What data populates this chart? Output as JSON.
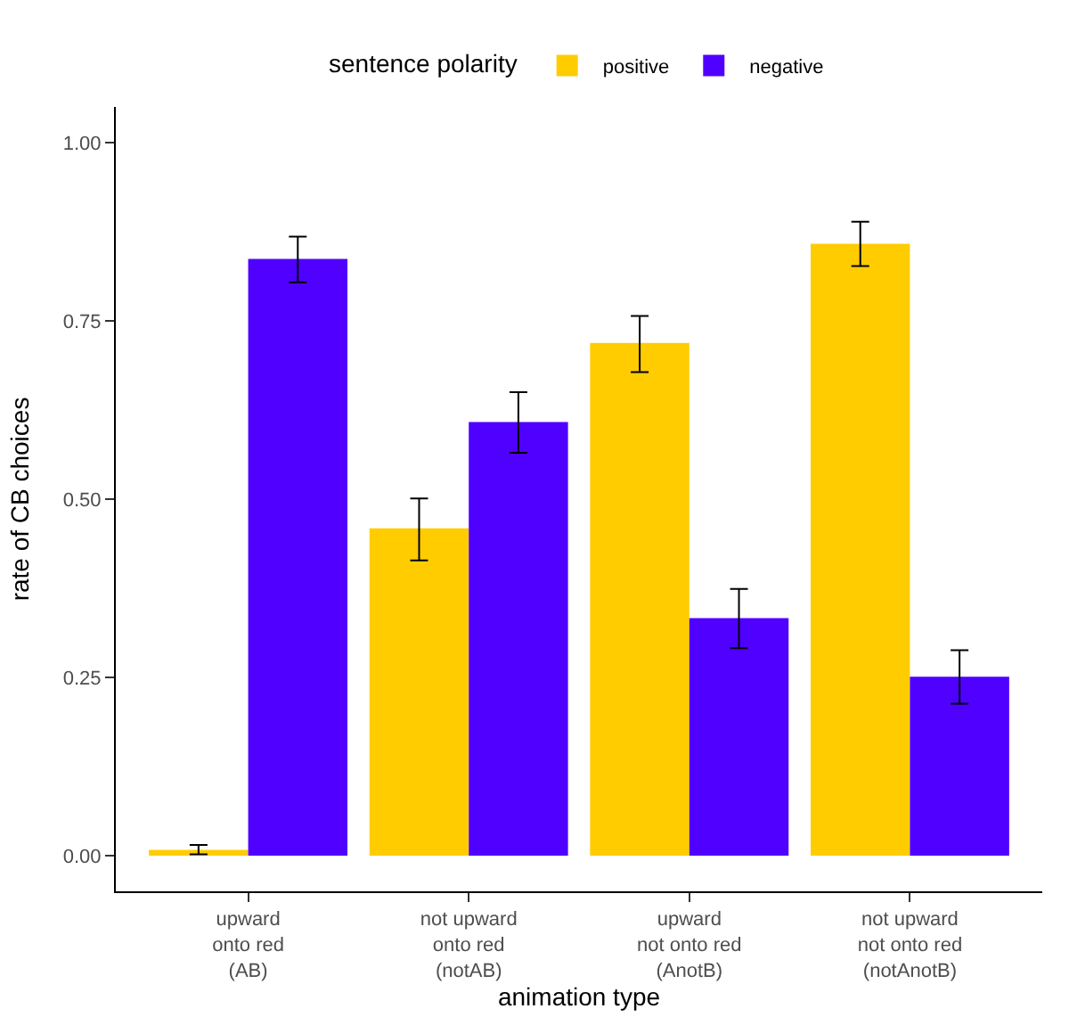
{
  "chart_data": {
    "type": "bar",
    "xlabel": "animation type",
    "ylabel": "rate of CB choices",
    "legend_title": "sentence polarity",
    "categories": [
      "upward\nonto red\n(AB)",
      "not upward\nonto red\n(notAB)",
      "upward\nnot onto red\n(AnotB)",
      "not upward\nnot onto red\n(notAnotB)"
    ],
    "series": [
      {
        "name": "positive",
        "color": "#ffcc00",
        "values": [
          0.008,
          0.459,
          0.719,
          0.858
        ],
        "errors": [
          [
            0.002,
            0.015
          ],
          [
            0.414,
            0.501
          ],
          [
            0.678,
            0.757
          ],
          [
            0.827,
            0.889
          ]
        ]
      },
      {
        "name": "negative",
        "color": "#5000ff",
        "values": [
          0.837,
          0.608,
          0.333,
          0.251
        ],
        "errors": [
          [
            0.804,
            0.868
          ],
          [
            0.565,
            0.65
          ],
          [
            0.291,
            0.374
          ],
          [
            0.213,
            0.288
          ]
        ]
      }
    ],
    "ylim": [
      -0.05,
      1.05
    ],
    "yticks": [
      {
        "value": 0,
        "label": "0.00"
      },
      {
        "value": 0.25,
        "label": "0.25"
      },
      {
        "value": 0.5,
        "label": "0.50"
      },
      {
        "value": 0.75,
        "label": "0.75"
      },
      {
        "value": 1,
        "label": "1.00"
      }
    ],
    "legend": "top"
  }
}
